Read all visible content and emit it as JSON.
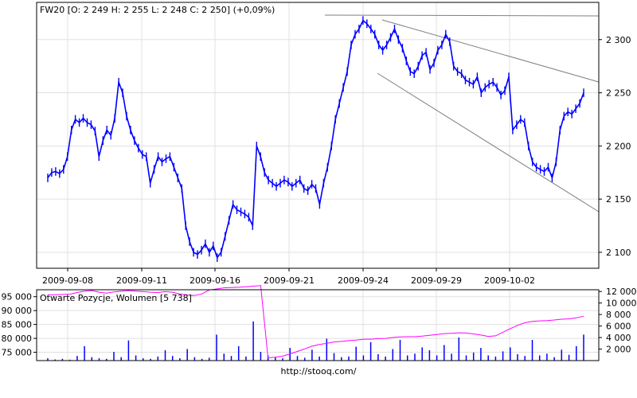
{
  "chart_data": [
    {
      "type": "line",
      "title": "FW20 [O: 2 249  H: 2 255  L: 2 248  C: 2 250] (+0,09%)",
      "x_ticks": [
        "2009-09-08",
        "2009-09-11",
        "2009-09-16",
        "2009-09-21",
        "2009-09-24",
        "2009-09-29",
        "2009-10-02"
      ],
      "y_ticks": [
        "2 100",
        "2 150",
        "2 200",
        "2 250",
        "2 300"
      ],
      "ylim": [
        2085,
        2335
      ],
      "grid": true,
      "series": [
        {
          "color": "#0000ff",
          "values": [
            2170,
            2175,
            2176,
            2174,
            2178,
            2190,
            2215,
            2225,
            2222,
            2226,
            2222,
            2220,
            2214,
            2190,
            2205,
            2215,
            2210,
            2226,
            2260,
            2250,
            2228,
            2215,
            2205,
            2198,
            2192,
            2190,
            2165,
            2178,
            2190,
            2185,
            2188,
            2190,
            2180,
            2170,
            2160,
            2125,
            2110,
            2100,
            2098,
            2102,
            2108,
            2100,
            2106,
            2095,
            2100,
            2115,
            2130,
            2145,
            2140,
            2138,
            2136,
            2133,
            2125,
            2200,
            2190,
            2175,
            2168,
            2165,
            2162,
            2165,
            2168,
            2166,
            2162,
            2165,
            2168,
            2160,
            2158,
            2164,
            2160,
            2145,
            2165,
            2180,
            2200,
            2225,
            2240,
            2255,
            2270,
            2295,
            2305,
            2310,
            2318,
            2315,
            2310,
            2305,
            2295,
            2290,
            2295,
            2302,
            2310,
            2300,
            2292,
            2280,
            2270,
            2268,
            2275,
            2285,
            2288,
            2272,
            2278,
            2290,
            2295,
            2305,
            2298,
            2275,
            2270,
            2268,
            2262,
            2260,
            2258,
            2265,
            2250,
            2255,
            2258,
            2260,
            2255,
            2248,
            2252,
            2265,
            2215,
            2220,
            2225,
            2222,
            2200,
            2185,
            2180,
            2178,
            2176,
            2180,
            2170,
            2185,
            2215,
            2228,
            2232,
            2230,
            2235,
            2240,
            2250
          ]
        }
      ]
    },
    {
      "type": "area",
      "title": "Otwarte Pozycje, Wolumen [5 738]",
      "y_ticks_left": [
        "75 000",
        "80 000",
        "85 000",
        "90 000",
        "95 000"
      ],
      "ylim_left": [
        72000,
        97500
      ],
      "y_ticks_right": [
        "2 000",
        "4 000",
        "6 000",
        "8 000",
        "10 000",
        "12 000"
      ],
      "ylim_right": [
        0,
        12300
      ],
      "grid": true,
      "series": [
        {
          "color": "#ff00ff",
          "values": [
            95600,
            95700,
            95800,
            95900,
            96500,
            97000,
            97200,
            96600,
            96300,
            96700,
            97000,
            97200,
            97000,
            96800,
            96600,
            96500,
            96800,
            96600,
            96000,
            95600,
            95400,
            96000,
            97400,
            97800,
            98200,
            98300,
            98400,
            98600,
            98800,
            99000,
            73000,
            73200,
            73600,
            74400,
            75300,
            76200,
            77200,
            77800,
            78200,
            78700,
            78900,
            79200,
            79400,
            79700,
            79700,
            79900,
            80000,
            80300,
            80500,
            80600,
            80600,
            80800,
            81100,
            81400,
            81700,
            81800,
            82000,
            81900,
            81600,
            81200,
            80700,
            80900,
            82200,
            83500,
            84700,
            85600,
            86100,
            86300,
            86400,
            86600,
            86900,
            87000,
            87400,
            88000
          ]
        },
        {
          "color": "#0000ff",
          "values": [
            400,
            200,
            300,
            150,
            800,
            2500,
            600,
            400,
            300,
            1500,
            600,
            3500,
            900,
            400,
            300,
            700,
            1800,
            800,
            400,
            2000,
            600,
            300,
            500,
            4500,
            1200,
            800,
            2500,
            700,
            6800,
            1500,
            900,
            600,
            400,
            2200,
            800,
            500,
            1900,
            700,
            3800,
            1300,
            600,
            700,
            2400,
            900,
            3200,
            1100,
            700,
            2000,
            3600,
            900,
            1200,
            2300,
            1800,
            900,
            2700,
            1200,
            4000,
            900,
            1400,
            2200,
            900,
            700,
            1600,
            2300,
            1100,
            800,
            3600,
            900,
            1200,
            600,
            1900,
            1000,
            2500,
            4500
          ]
        }
      ]
    }
  ],
  "footer": {
    "url": "http://stooq.com/"
  }
}
